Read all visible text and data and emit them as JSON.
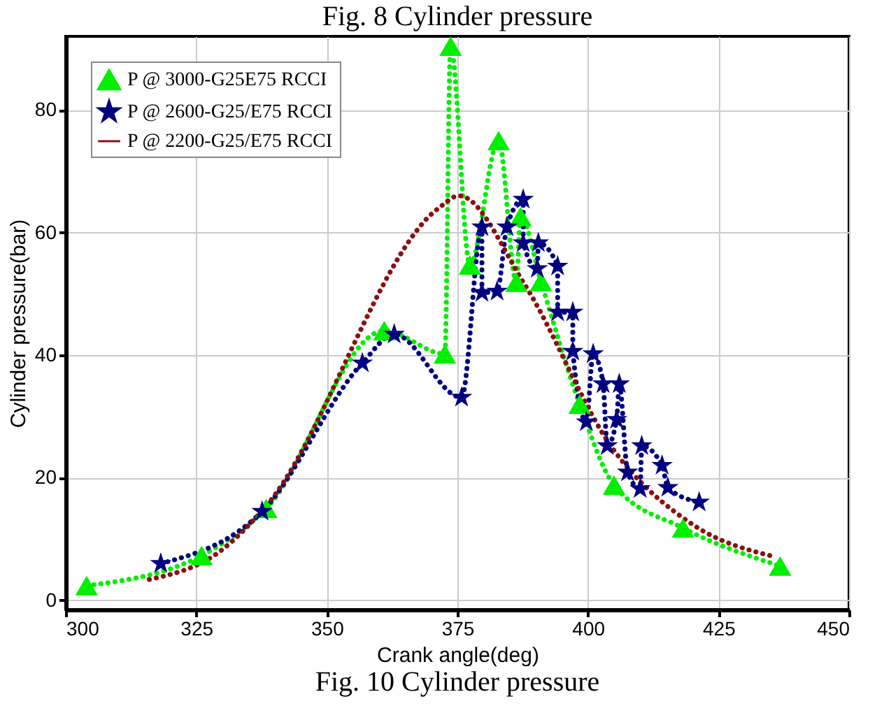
{
  "chart_data": {
    "type": "line",
    "xlabel": "Crank angle(deg)",
    "ylabel": "Cylinder pressure(bar)",
    "annotations": [
      "Fig. 8 Cylinder pressure",
      "Fig. 10 Cylinder pressure"
    ],
    "xlim": [
      300,
      450
    ],
    "xticks": [
      300,
      325,
      350,
      375,
      400,
      425,
      450
    ],
    "ylim": [
      -1.5,
      92
    ],
    "yticks": [
      0,
      20,
      40,
      60,
      80
    ],
    "grid": true,
    "legend": "top left",
    "line_style": "dotted",
    "series": [
      {
        "name": "P @ 3000-G25E75 RCCI",
        "color": "#00ee00",
        "marker": "triangle",
        "x": [
          304,
          326,
          338.4,
          361,
          372.6,
          373.7,
          377.4,
          382.9,
          386.3,
          387.1,
          391,
          398.4,
          405,
          418.2,
          436.8
        ],
        "values": [
          2.4,
          7.3,
          15,
          44,
          40.2,
          90.4,
          54.7,
          75,
          51.9,
          62.6,
          52,
          32,
          18.8,
          11.8,
          5.6
        ]
      },
      {
        "name": "P @ 2600-G25/E75 RCCI",
        "color": "#000080",
        "marker": "star",
        "x": [
          318.2,
          337.6,
          356.8,
          362.9,
          375.8,
          379.7,
          379.7,
          382.6,
          384.5,
          387.6,
          387.6,
          390.3,
          390.5,
          394.2,
          394.2,
          397.1,
          397.1,
          399.7,
          401,
          402.9,
          403.7,
          405.5,
          406,
          407.6,
          410,
          410.3,
          414.2,
          415.3,
          421.3
        ],
        "values": [
          6.0,
          14.5,
          38.7,
          43.4,
          33.1,
          60.9,
          50.2,
          50.4,
          60.9,
          65.4,
          58.3,
          54.1,
          58.3,
          54.5,
          47,
          47,
          40.6,
          29.1,
          40.2,
          35.3,
          25.2,
          29.5,
          35.3,
          20.9,
          18.2,
          25.2,
          22,
          18.4,
          16
        ]
      },
      {
        "name": "P @ 2200-G25/E75 RCCI",
        "color": "#8b1010",
        "marker": "none",
        "x": [
          316,
          329.7,
          338,
          371.3,
          375.3,
          387.9,
          404.7,
          420,
          435.8
        ],
        "values": [
          3.4,
          8.1,
          15,
          63.9,
          66,
          51.5,
          24.8,
          12.4,
          7.1
        ]
      }
    ]
  }
}
